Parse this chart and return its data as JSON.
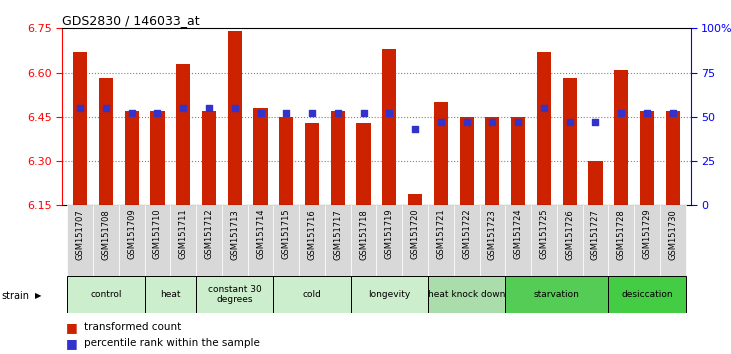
{
  "title": "GDS2830 / 146033_at",
  "samples": [
    "GSM151707",
    "GSM151708",
    "GSM151709",
    "GSM151710",
    "GSM151711",
    "GSM151712",
    "GSM151713",
    "GSM151714",
    "GSM151715",
    "GSM151716",
    "GSM151717",
    "GSM151718",
    "GSM151719",
    "GSM151720",
    "GSM151721",
    "GSM151722",
    "GSM151723",
    "GSM151724",
    "GSM151725",
    "GSM151726",
    "GSM151727",
    "GSM151728",
    "GSM151729",
    "GSM151730"
  ],
  "bar_values": [
    6.67,
    6.58,
    6.47,
    6.47,
    6.63,
    6.47,
    6.74,
    6.48,
    6.45,
    6.43,
    6.47,
    6.43,
    6.68,
    6.19,
    6.5,
    6.45,
    6.45,
    6.45,
    6.67,
    6.58,
    6.3,
    6.61,
    6.47,
    6.47
  ],
  "percentile_values": [
    55,
    55,
    52,
    52,
    55,
    55,
    55,
    52,
    52,
    52,
    52,
    52,
    52,
    43,
    47,
    47,
    47,
    47,
    55,
    47,
    47,
    52,
    52,
    52
  ],
  "bar_bottom": 6.15,
  "ylim": [
    6.15,
    6.75
  ],
  "yticks": [
    6.15,
    6.3,
    6.45,
    6.6,
    6.75
  ],
  "right_yticks": [
    0,
    25,
    50,
    75,
    100
  ],
  "right_ylim": [
    0,
    100
  ],
  "bar_color": "#cc2200",
  "dot_color": "#3333cc",
  "groups": [
    {
      "label": "control",
      "start": 0,
      "end": 3,
      "color": "#cceecc"
    },
    {
      "label": "heat",
      "start": 3,
      "end": 5,
      "color": "#cceecc"
    },
    {
      "label": "constant 30\ndegrees",
      "start": 5,
      "end": 8,
      "color": "#cceecc"
    },
    {
      "label": "cold",
      "start": 8,
      "end": 11,
      "color": "#cceecc"
    },
    {
      "label": "longevity",
      "start": 11,
      "end": 14,
      "color": "#cceecc"
    },
    {
      "label": "heat knock down",
      "start": 14,
      "end": 17,
      "color": "#aaddaa"
    },
    {
      "label": "starvation",
      "start": 17,
      "end": 21,
      "color": "#55cc55"
    },
    {
      "label": "desiccation",
      "start": 21,
      "end": 24,
      "color": "#44cc44"
    }
  ],
  "legend_red": "transformed count",
  "legend_blue": "percentile rank within the sample",
  "xlabel_strain": "strain"
}
